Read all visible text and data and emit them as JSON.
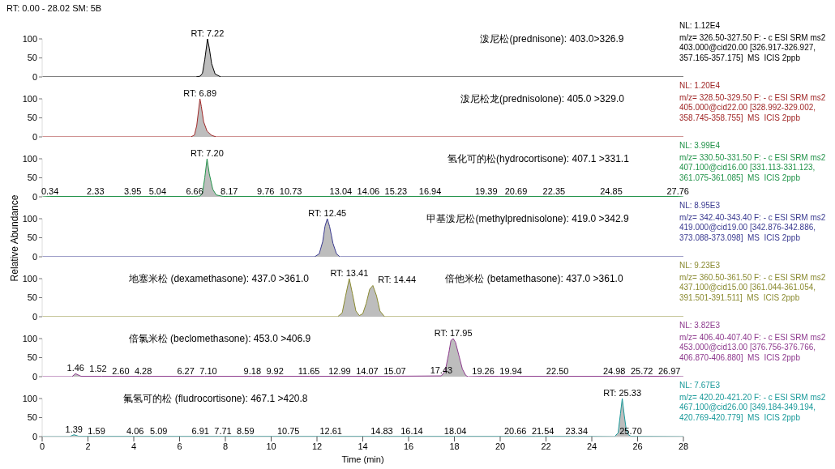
{
  "chart_data": [
    {
      "type": "area",
      "title": "RT: 0.00 - 28.02 SM: 5B",
      "tick_labels": "y",
      "xlim": [
        0,
        28
      ],
      "xticks": [
        0,
        2,
        4,
        6,
        8,
        10,
        12,
        14,
        16,
        18,
        20,
        22,
        24,
        26,
        28
      ],
      "ylim": [
        0,
        100
      ],
      "yticks": [
        0,
        50,
        100
      ],
      "x": [
        0,
        6.7,
        6.9,
        7.0,
        7.1,
        7.22,
        7.3,
        7.4,
        7.55,
        7.8,
        28
      ],
      "series": [
        {
          "color": "#000000",
          "values": [
            0,
            0,
            2,
            10,
            45,
            100,
            75,
            35,
            8,
            0,
            0
          ]
        }
      ],
      "annotations": [
        {
          "text": "RT: 7.22",
          "x": 7.22,
          "y": 100
        },
        "泼尼松(prednisone): 403.0>326.9",
        "NL: 1.12E4",
        "m/z= 326.50-327.50 F: - c ESI SRM ms2",
        "403.000@cid20.00 [326.917-326.927,",
        "357.165-357.175]  MS  ICIS 2ppb"
      ]
    },
    {
      "type": "area",
      "tick_labels": "y",
      "xlim": [
        0,
        28
      ],
      "xticks": [
        0,
        2,
        4,
        6,
        8,
        10,
        12,
        14,
        16,
        18,
        20,
        22,
        24,
        26,
        28
      ],
      "ylim": [
        0,
        100
      ],
      "yticks": [
        0,
        50,
        100
      ],
      "x": [
        0,
        6.5,
        6.65,
        6.75,
        6.89,
        6.95,
        7.05,
        7.2,
        7.4,
        7.6,
        28
      ],
      "series": [
        {
          "color": "#a02828",
          "values": [
            0,
            0,
            5,
            30,
            100,
            80,
            40,
            15,
            4,
            0,
            0
          ]
        }
      ],
      "annotations": [
        {
          "text": "RT: 6.89",
          "x": 6.89,
          "y": 100
        },
        "泼尼松龙(prednisolone): 405.0 >329.0",
        "NL: 1.20E4",
        "m/z= 328.50-329.50 F: - c ESI SRM ms2",
        "405.000@cid22.00 [328.992-329.002,",
        "358.745-358.755]  MS  ICIS 2ppb"
      ]
    },
    {
      "type": "area",
      "tick_labels": "y",
      "xlim": [
        0,
        28
      ],
      "xticks": [
        0,
        2,
        4,
        6,
        8,
        10,
        12,
        14,
        16,
        18,
        20,
        22,
        24,
        26,
        28
      ],
      "ylim": [
        0,
        100
      ],
      "yticks": [
        0,
        50,
        100
      ],
      "x": [
        0,
        0.34,
        2.33,
        3.95,
        5.04,
        6.66,
        6.9,
        7.0,
        7.1,
        7.2,
        7.3,
        7.45,
        7.6,
        7.9,
        8.17,
        9.76,
        10.73,
        13.04,
        14.06,
        15.23,
        16.94,
        19.39,
        20.69,
        22.35,
        24.85,
        27.76,
        28
      ],
      "series": [
        {
          "color": "#22934a",
          "values": [
            0,
            1,
            1,
            1,
            1,
            1,
            2,
            10,
            50,
            100,
            60,
            20,
            5,
            1,
            1,
            1,
            1,
            1,
            1,
            1,
            1,
            1,
            1,
            1,
            1,
            1,
            0
          ]
        }
      ],
      "annotations": [
        {
          "text": "RT: 7.20",
          "x": 7.2,
          "y": 100
        },
        {
          "text": "0.34",
          "x": 0.34,
          "y": 1
        },
        {
          "text": "2.33",
          "x": 2.33,
          "y": 1
        },
        {
          "text": "3.95",
          "x": 3.95,
          "y": 1
        },
        {
          "text": "5.04",
          "x": 5.04,
          "y": 1
        },
        {
          "text": "6.66",
          "x": 6.66,
          "y": 1
        },
        {
          "text": "8.17",
          "x": 8.17,
          "y": 1
        },
        {
          "text": "9.76",
          "x": 9.76,
          "y": 1
        },
        {
          "text": "10.73",
          "x": 10.73,
          "y": 1
        },
        {
          "text": "13.04",
          "x": 13.04,
          "y": 1
        },
        {
          "text": "14.06",
          "x": 14.06,
          "y": 1
        },
        {
          "text": "15.23",
          "x": 15.23,
          "y": 1
        },
        {
          "text": "16.94",
          "x": 16.94,
          "y": 1
        },
        {
          "text": "19.39",
          "x": 19.39,
          "y": 1
        },
        {
          "text": "20.69",
          "x": 20.69,
          "y": 1
        },
        {
          "text": "22.35",
          "x": 22.35,
          "y": 1
        },
        {
          "text": "24.85",
          "x": 24.85,
          "y": 1
        },
        {
          "text": "27.76",
          "x": 27.76,
          "y": 1
        },
        "氢化可的松(hydrocortisone): 407.1 >331.1",
        "NL: 3.99E4",
        "m/z= 330.50-331.50 F: - c ESI SRM ms2",
        "407.100@cid16.00 [331.113-331.123,",
        "361.075-361.085]  MS  ICIS 2ppb"
      ]
    },
    {
      "type": "area",
      "tick_labels": "y",
      "ylabel": "Relative Abundance",
      "xlim": [
        0,
        28
      ],
      "xticks": [
        0,
        2,
        4,
        6,
        8,
        10,
        12,
        14,
        16,
        18,
        20,
        22,
        24,
        26,
        28
      ],
      "ylim": [
        0,
        100
      ],
      "yticks": [
        0,
        50,
        100
      ],
      "x": [
        0,
        11.9,
        12.1,
        12.25,
        12.35,
        12.45,
        12.55,
        12.7,
        12.85,
        13.0,
        28
      ],
      "series": [
        {
          "color": "#3a3a90",
          "values": [
            0,
            0,
            8,
            40,
            80,
            100,
            80,
            35,
            8,
            0,
            0
          ]
        }
      ],
      "annotations": [
        {
          "text": "RT: 12.45",
          "x": 12.45,
          "y": 100
        },
        "甲基泼尼松(methylprednisolone): 419.0 >342.9",
        "NL: 8.95E3",
        "m/z= 342.40-343.40 F: - c ESI SRM ms2",
        "419.000@cid19.00 [342.876-342.886,",
        "373.088-373.098]  MS  ICIS 2ppb"
      ]
    },
    {
      "type": "area",
      "tick_labels": "y",
      "xlim": [
        0,
        28
      ],
      "xticks": [
        0,
        2,
        4,
        6,
        8,
        10,
        12,
        14,
        16,
        18,
        20,
        22,
        24,
        26,
        28
      ],
      "ylim": [
        0,
        100
      ],
      "yticks": [
        0,
        50,
        100
      ],
      "x": [
        0,
        12.9,
        13.1,
        13.25,
        13.41,
        13.55,
        13.7,
        13.85,
        14.0,
        14.15,
        14.3,
        14.44,
        14.6,
        14.75,
        14.95,
        28
      ],
      "series": [
        {
          "color": "#8a8a30",
          "values": [
            0,
            0,
            10,
            55,
            100,
            60,
            15,
            3,
            8,
            35,
            72,
            82,
            55,
            15,
            0,
            0
          ]
        }
      ],
      "annotations": [
        {
          "text": "RT: 13.41",
          "x": 13.41,
          "y": 100
        },
        {
          "text": "RT: 14.44",
          "x": 14.44,
          "y": 82
        },
        "地塞米松 (dexamethasone): 437.0 >361.0",
        "倍他米松 (betamethasone): 437.0 >361.0",
        "NL: 9.23E3",
        "m/z= 360.50-361.50 F: - c ESI SRM ms2",
        "437.100@cid15.00 [361.044-361.054,",
        "391.501-391.511]  MS  ICIS 2ppb"
      ]
    },
    {
      "type": "area",
      "tick_labels": "y",
      "xlim": [
        0,
        28
      ],
      "xticks": [
        0,
        2,
        4,
        6,
        8,
        10,
        12,
        14,
        16,
        18,
        20,
        22,
        24,
        26,
        28
      ],
      "ylim": [
        0,
        100
      ],
      "yticks": [
        0,
        50,
        100
      ],
      "x": [
        0,
        1.3,
        1.46,
        1.52,
        1.7,
        2.6,
        4.28,
        6.27,
        7.1,
        9.18,
        9.92,
        11.65,
        12.99,
        14.07,
        15.07,
        17.43,
        17.6,
        17.75,
        17.85,
        17.95,
        18.05,
        18.2,
        18.35,
        18.5,
        18.6,
        19.26,
        19.94,
        22.5,
        24.98,
        25.72,
        26.97,
        28
      ],
      "series": [
        {
          "color": "#8e3a8e",
          "values": [
            0,
            0,
            8,
            6,
            1,
            1,
            1,
            1,
            1,
            1,
            1,
            1,
            1,
            1,
            1,
            2,
            15,
            60,
            95,
            100,
            90,
            55,
            20,
            3,
            0,
            1,
            1,
            1,
            1,
            1,
            1,
            0
          ]
        }
      ],
      "annotations": [
        {
          "text": "RT: 17.95",
          "x": 17.95,
          "y": 100
        },
        {
          "text": "1.46",
          "x": 1.46,
          "y": 8
        },
        {
          "text": "1.52",
          "x": 1.52,
          "y": 6
        },
        {
          "text": "2.60",
          "x": 2.6,
          "y": 1
        },
        {
          "text": "4.28",
          "x": 4.28,
          "y": 1
        },
        {
          "text": "6.27",
          "x": 6.27,
          "y": 1
        },
        {
          "text": "7.10",
          "x": 7.1,
          "y": 1
        },
        {
          "text": "9.18",
          "x": 9.18,
          "y": 1
        },
        {
          "text": "9.92",
          "x": 9.92,
          "y": 1
        },
        {
          "text": "11.65",
          "x": 11.65,
          "y": 1
        },
        {
          "text": "12.99",
          "x": 12.99,
          "y": 1
        },
        {
          "text": "14.07",
          "x": 14.07,
          "y": 1
        },
        {
          "text": "15.07",
          "x": 15.07,
          "y": 1
        },
        {
          "text": "17.43",
          "x": 17.43,
          "y": 2
        },
        {
          "text": "19.26",
          "x": 19.26,
          "y": 1
        },
        {
          "text": "19.94",
          "x": 19.94,
          "y": 1
        },
        {
          "text": "22.50",
          "x": 22.5,
          "y": 1
        },
        {
          "text": "24.98",
          "x": 24.98,
          "y": 1
        },
        {
          "text": "25.72",
          "x": 25.72,
          "y": 1
        },
        {
          "text": "26.97",
          "x": 26.97,
          "y": 1
        },
        "倍氯米松 (beclomethasone): 453.0 >406.9",
        "NL: 3.82E3",
        "m/z= 406.40-407.40 F: - c ESI SRM ms2",
        "453.000@cid13.00 [376.756-376.766,",
        "406.870-406.880]  MS  ICIS 2ppb"
      ]
    },
    {
      "type": "area",
      "xlabel": "Time (min)",
      "xlim": [
        0,
        28
      ],
      "xticks": [
        0,
        2,
        4,
        6,
        8,
        10,
        12,
        14,
        16,
        18,
        20,
        22,
        24,
        26,
        28
      ],
      "ylim": [
        0,
        100
      ],
      "yticks": [
        0,
        50,
        100
      ],
      "x": [
        0,
        1.2,
        1.39,
        1.59,
        4.06,
        5.09,
        6.91,
        7.71,
        8.59,
        10.75,
        12.61,
        14.83,
        16.14,
        18.04,
        20.66,
        21.54,
        23.34,
        25.0,
        25.15,
        25.25,
        25.33,
        25.42,
        25.5,
        25.6,
        25.7,
        28
      ],
      "series": [
        {
          "color": "#1a9a9a",
          "values": [
            0,
            0,
            5,
            1,
            1,
            1,
            1,
            1,
            1,
            1,
            1,
            1,
            1,
            1,
            1,
            1,
            1,
            0,
            10,
            60,
            100,
            55,
            20,
            5,
            1,
            0
          ]
        }
      ],
      "annotations": [
        {
          "text": "RT: 25.33",
          "x": 25.33,
          "y": 100
        },
        {
          "text": "1.39",
          "x": 1.39,
          "y": 5
        },
        {
          "text": "1.59",
          "x": 1.59,
          "y": 1
        },
        {
          "text": "4.06",
          "x": 4.06,
          "y": 1
        },
        {
          "text": "5.09",
          "x": 5.09,
          "y": 1
        },
        {
          "text": "6.91",
          "x": 6.91,
          "y": 1
        },
        {
          "text": "7.71",
          "x": 7.71,
          "y": 1
        },
        {
          "text": "8.59",
          "x": 8.59,
          "y": 1
        },
        {
          "text": "10.75",
          "x": 10.75,
          "y": 1
        },
        {
          "text": "12.61",
          "x": 12.61,
          "y": 1
        },
        {
          "text": "14.83",
          "x": 14.83,
          "y": 1
        },
        {
          "text": "16.14",
          "x": 16.14,
          "y": 1
        },
        {
          "text": "18.04",
          "x": 18.04,
          "y": 1
        },
        {
          "text": "20.66",
          "x": 20.66,
          "y": 1
        },
        {
          "text": "21.54",
          "x": 21.54,
          "y": 1
        },
        {
          "text": "23.34",
          "x": 23.34,
          "y": 1
        },
        {
          "text": "25.70",
          "x": 25.7,
          "y": 1
        },
        "氟氢可的松 (fludrocortisone): 467.1 >420.8",
        "NL: 7.67E3",
        "m/z= 420.20-421.20 F: - c ESI SRM ms2",
        "467.100@cid26.00 [349.184-349.194,",
        "420.769-420.779]  MS  ICIS 2ppb"
      ]
    }
  ]
}
